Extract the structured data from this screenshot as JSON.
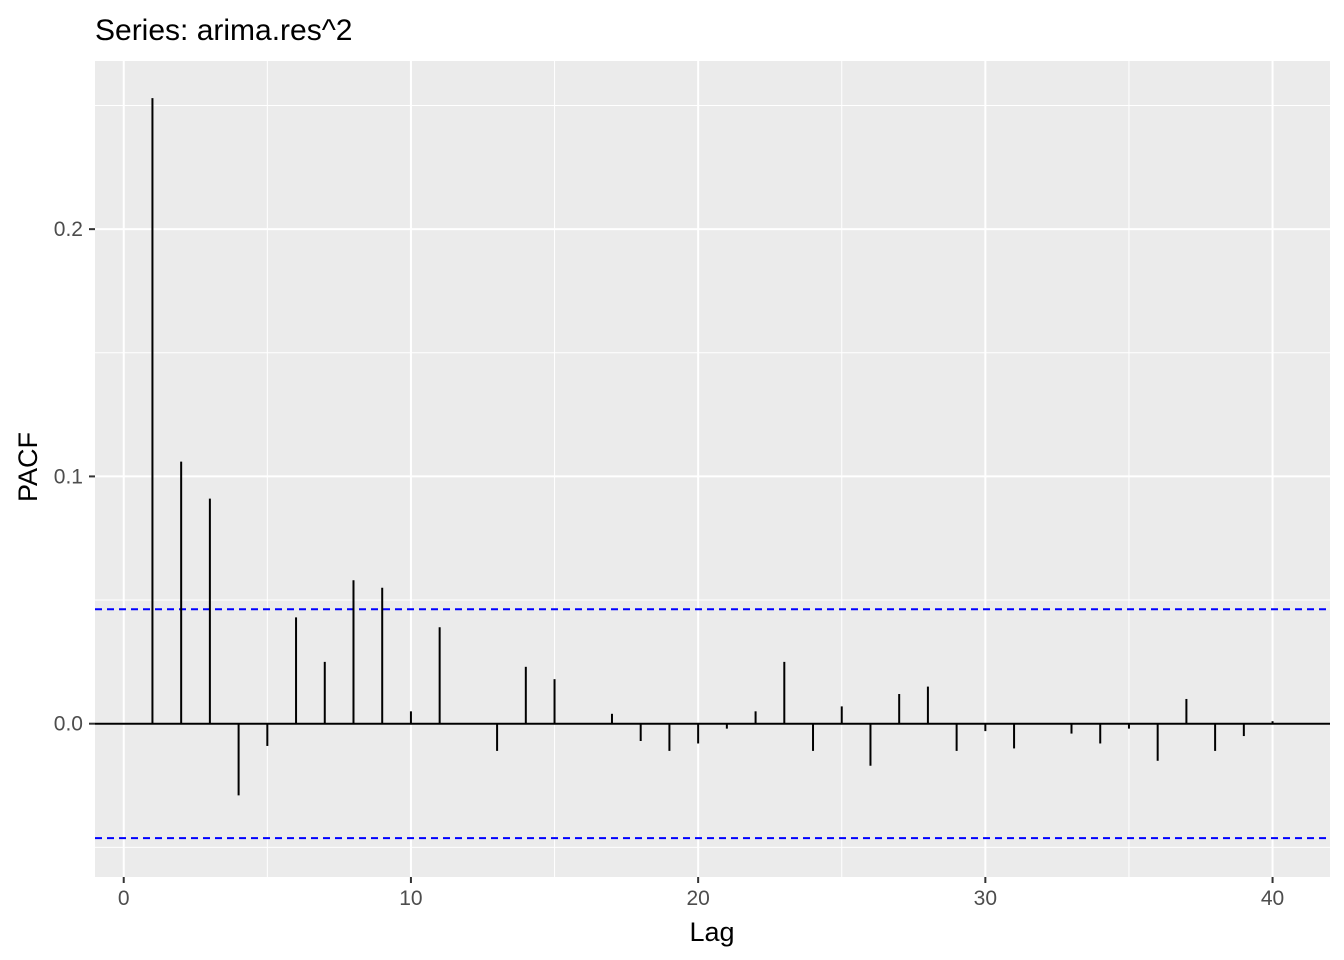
{
  "chart_data": {
    "type": "bar",
    "title": "Series: arima.res^2",
    "xlabel": "Lag",
    "ylabel": "PACF",
    "xlim": [
      -1,
      42
    ],
    "ylim": [
      -0.062,
      0.268
    ],
    "x_ticks": [
      {
        "value": 0,
        "label": "0"
      },
      {
        "value": 10,
        "label": "10"
      },
      {
        "value": 20,
        "label": "20"
      },
      {
        "value": 30,
        "label": "30"
      },
      {
        "value": 40,
        "label": "40"
      }
    ],
    "y_ticks": [
      {
        "value": 0.0,
        "label": "0.0"
      },
      {
        "value": 0.1,
        "label": "0.1"
      },
      {
        "value": 0.2,
        "label": "0.2"
      }
    ],
    "grid": true,
    "confidence_limits": [
      0.0463,
      -0.0463
    ],
    "colors": {
      "panel": "#ebebeb",
      "grid": "#ffffff",
      "bars": "#000000",
      "confidence_line": "#0000ff"
    },
    "lags": [
      1,
      2,
      3,
      4,
      5,
      6,
      7,
      8,
      9,
      10,
      11,
      12,
      13,
      14,
      15,
      16,
      17,
      18,
      19,
      20,
      21,
      22,
      23,
      24,
      25,
      26,
      27,
      28,
      29,
      30,
      31,
      32,
      33,
      34,
      35,
      36,
      37,
      38,
      39,
      40
    ],
    "values": [
      0.253,
      0.106,
      0.091,
      -0.029,
      -0.009,
      0.043,
      0.025,
      0.058,
      0.055,
      0.005,
      0.039,
      0.0,
      -0.011,
      0.023,
      0.018,
      0.0,
      0.004,
      -0.007,
      -0.011,
      -0.008,
      -0.002,
      0.005,
      0.025,
      -0.011,
      0.007,
      -0.017,
      0.012,
      0.015,
      -0.011,
      -0.003,
      -0.01,
      0.0,
      -0.004,
      -0.008,
      -0.002,
      -0.015,
      0.01,
      -0.011,
      -0.005,
      0.001
    ]
  }
}
